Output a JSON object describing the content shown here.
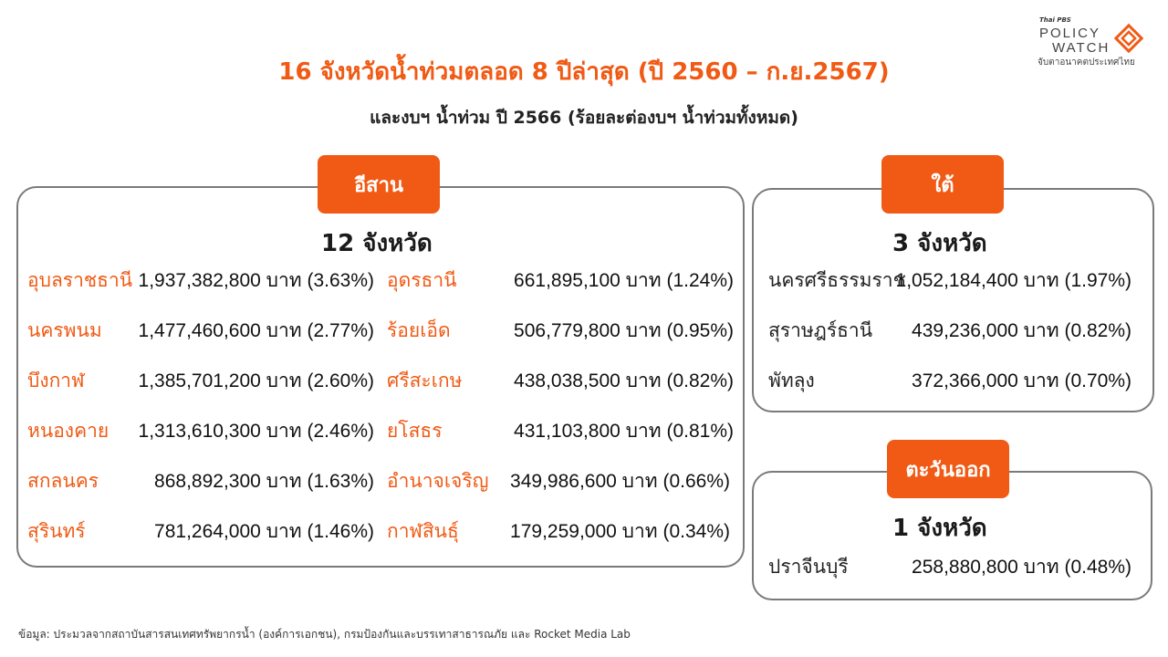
{
  "brand": {
    "small": "Thai PBS",
    "line1": "POLICY",
    "line2": "WATCH",
    "tagline": "จับตาอนาคตประเทศไทย",
    "accent": "#f05a14"
  },
  "title": "16 จังหวัดน้ำท่วมตลอด 8 ปีล่าสุด (ปี 2560 – ก.ย.2567)",
  "subtitle": "และงบฯ น้ำท่วม ปี 2566 (ร้อยละต่องบฯ น้ำท่วมทั้งหมด)",
  "isan": {
    "tag": "อีสาน",
    "count": "12 จังหวัด",
    "left": [
      {
        "name": "อุบลราชธานี",
        "value": "1,937,382,800 บาท (3.63%)"
      },
      {
        "name": "นครพนม",
        "value": "1,477,460,600 บาท (2.77%)"
      },
      {
        "name": "บึงกาฬ",
        "value": "1,385,701,200 บาท (2.60%)"
      },
      {
        "name": "หนองคาย",
        "value": "1,313,610,300 บาท (2.46%)"
      },
      {
        "name": "สกลนคร",
        "value": "868,892,300 บาท (1.63%)"
      },
      {
        "name": "สุรินทร์",
        "value": "781,264,000 บาท (1.46%)"
      }
    ],
    "right": [
      {
        "name": "อุดรธานี",
        "value": "661,895,100 บาท (1.24%)"
      },
      {
        "name": "ร้อยเอ็ด",
        "value": "506,779,800 บาท (0.95%)"
      },
      {
        "name": "ศรีสะเกษ",
        "value": "438,038,500 บาท (0.82%)"
      },
      {
        "name": "ยโสธร",
        "value": "431,103,800 บาท (0.81%)"
      },
      {
        "name": "อำนาจเจริญ",
        "value": "349,986,600 บาท (0.66%)"
      },
      {
        "name": "กาฬสินธุ์",
        "value": "179,259,000 บาท (0.34%)"
      }
    ]
  },
  "south": {
    "tag": "ใต้",
    "count": "3 จังหวัด",
    "rows": [
      {
        "name": "นครศรีธรรมราช",
        "value": "1,052,184,400 บาท (1.97%)"
      },
      {
        "name": "สุราษฎร์ธานี",
        "value": "439,236,000 บาท (0.82%)"
      },
      {
        "name": "พัทลุง",
        "value": "372,366,000 บาท (0.70%)"
      }
    ]
  },
  "east": {
    "tag": "ตะวันออก",
    "count": "1 จังหวัด",
    "rows": [
      {
        "name": "ปราจีนบุรี",
        "value": "258,880,800 บาท (0.48%)"
      }
    ]
  },
  "footer": "ข้อมูล: ประมวลจากสถาบันสารสนเทศทรัพยากรน้ำ (องค์การเอกชน), กรมป้องกันและบรรเทาสาธารณภัย และ Rocket Media Lab"
}
